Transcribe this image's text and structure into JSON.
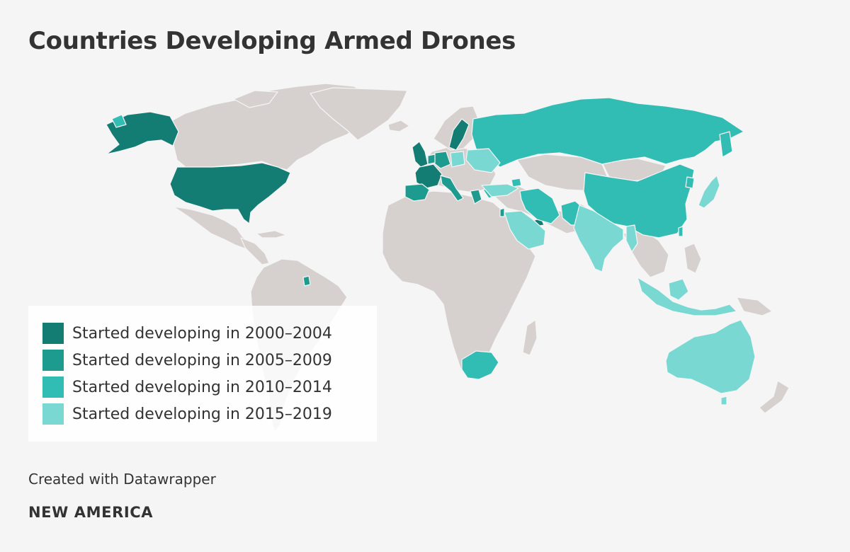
{
  "title": "Countries Developing Armed Drones",
  "colors": {
    "background": "#f5f5f5",
    "land": "#d6d1cf",
    "border": "#f5f5f5",
    "period_2000_2004": "#137d73",
    "period_2005_2009": "#1e9b8f",
    "period_2010_2014": "#31bdb3",
    "period_2015_2019": "#7ad8d3"
  },
  "legend": [
    {
      "label": "Started developing in 2000–2004",
      "color": "#137d73"
    },
    {
      "label": "Started developing in 2005–2009",
      "color": "#1e9b8f"
    },
    {
      "label": "Started developing in 2010–2014",
      "color": "#31bdb3"
    },
    {
      "label": "Started developing in 2015–2019",
      "color": "#7ad8d3"
    }
  ],
  "credit": "Created with Datawrapper",
  "brand": "NEW AMERICA"
}
